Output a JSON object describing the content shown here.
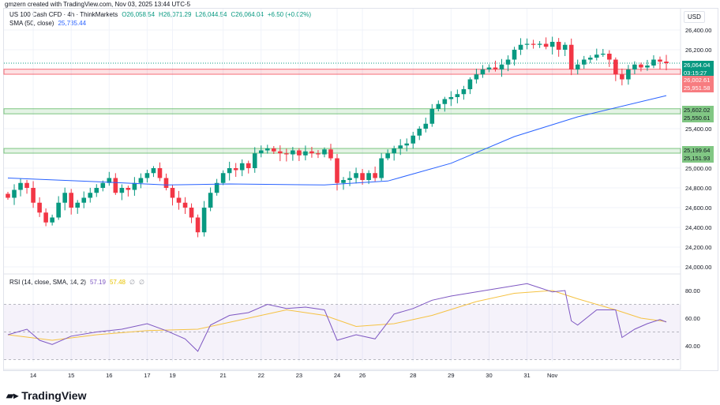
{
  "credit": "gmzern created with TradingView.com, Nov 03, 2025 13:44 UTC-5",
  "legend": {
    "symbol": "US 100 Cash CFD · 4h · ThinkMarkets",
    "open": "O26,058.54",
    "high": "H26,071.29",
    "low": "L26,044.54",
    "close": "C26,064.04",
    "change": "+6.50 (+0.02%)",
    "sma_label": "SMA (50, close)",
    "sma_value": "25,735.44"
  },
  "rsi_legend": {
    "label": "RSI (14, close, SMA, 14, 2)",
    "rsi": "57.19",
    "rsi_sma": "57.48",
    "d1": "∅",
    "d2": "∅"
  },
  "currency": "USD",
  "price_axis": [
    "26,400.00",
    "26,200.00",
    "25,400.00",
    "25,000.00",
    "24,800.00",
    "24,600.00",
    "24,400.00",
    "24,200.00",
    "24,000.00"
  ],
  "price_ticks": [
    26400,
    26200,
    25400,
    25000,
    24800,
    24600,
    24400,
    24200,
    24000
  ],
  "rsi_axis": [
    "80.00",
    "60.00",
    "40.00"
  ],
  "rsi_ticks": [
    80,
    60,
    40
  ],
  "tags": {
    "last": "26,064.04",
    "countdown": "03:15:27",
    "red_top": "26,002.61",
    "red_bottom": "25,951.58",
    "g1_top": "25,602.02",
    "g1_bottom": "25,550.61",
    "g2_top": "25,199.64",
    "g2_bottom": "25,151.93"
  },
  "colors": {
    "up": "#089981",
    "down": "#f23645",
    "sma": "#2962ff",
    "rsi": "#7e57c2",
    "rsi_sma": "#f5c242",
    "zone_red": "#f23645",
    "zone_green": "#4caf50"
  },
  "zones": [
    {
      "top": 26002.61,
      "bottom": 25951.58,
      "color": "red"
    },
    {
      "top": 25602.02,
      "bottom": 25550.61,
      "color": "green"
    },
    {
      "top": 25199.64,
      "bottom": 25151.93,
      "color": "green"
    }
  ],
  "x_axis": [
    "14",
    "15",
    "16",
    "17",
    "19",
    "21",
    "22",
    "23",
    "24",
    "26",
    "28",
    "29",
    "30",
    "31",
    "Nov"
  ],
  "x_axis_index": [
    4,
    10,
    16,
    22,
    26,
    34,
    40,
    46,
    52,
    56,
    64,
    70,
    76,
    82,
    86
  ],
  "chart_data": {
    "type": "candlestick",
    "last_price": 26064.04,
    "ylim": [
      24000,
      26450
    ],
    "closes": [
      24700,
      24780,
      24850,
      24800,
      24650,
      24550,
      24450,
      24500,
      24650,
      24750,
      24600,
      24650,
      24700,
      24750,
      24800,
      24850,
      24900,
      24750,
      24800,
      24780,
      24850,
      24900,
      24950,
      25000,
      24900,
      24800,
      24700,
      24650,
      24600,
      24500,
      24350,
      24600,
      24750,
      24850,
      24950,
      25000,
      24980,
      25050,
      25000,
      25150,
      25180,
      25200,
      25170,
      25150,
      25140,
      25180,
      25130,
      25170,
      25150,
      25140,
      25190,
      25100,
      24850,
      24880,
      24900,
      24950,
      24880,
      24950,
      24900,
      25100,
      25150,
      25200,
      25230,
      25250,
      25330,
      25400,
      25450,
      25600,
      25650,
      25700,
      25720,
      25750,
      25800,
      25900,
      25950,
      26000,
      26020,
      26000,
      26050,
      26100,
      26200,
      26250,
      26260,
      26250,
      26260,
      26230,
      26280,
      26200,
      26250,
      26000,
      26050,
      26100,
      26120,
      26150,
      26160,
      26100,
      25950,
      25900,
      26000,
      26050,
      26020,
      26040,
      26100,
      26080,
      26064
    ],
    "sma": [
      [
        0,
        24900
      ],
      [
        15,
        24860
      ],
      [
        25,
        24830
      ],
      [
        35,
        24840
      ],
      [
        50,
        24830
      ],
      [
        60,
        24870
      ],
      [
        70,
        25050
      ],
      [
        80,
        25320
      ],
      [
        90,
        25520
      ],
      [
        104,
        25735
      ]
    ],
    "rsi": [
      [
        0,
        48
      ],
      [
        3,
        52
      ],
      [
        5,
        44
      ],
      [
        7,
        41
      ],
      [
        10,
        47
      ],
      [
        14,
        50
      ],
      [
        18,
        52
      ],
      [
        22,
        56
      ],
      [
        25,
        51
      ],
      [
        28,
        45
      ],
      [
        30,
        36
      ],
      [
        32,
        55
      ],
      [
        35,
        62
      ],
      [
        38,
        64
      ],
      [
        41,
        70
      ],
      [
        44,
        67
      ],
      [
        47,
        68
      ],
      [
        50,
        66
      ],
      [
        52,
        44
      ],
      [
        55,
        48
      ],
      [
        58,
        45
      ],
      [
        61,
        63
      ],
      [
        64,
        67
      ],
      [
        67,
        73
      ],
      [
        70,
        76
      ],
      [
        74,
        79
      ],
      [
        78,
        82
      ],
      [
        82,
        85
      ],
      [
        84,
        82
      ],
      [
        86,
        79
      ],
      [
        88,
        80
      ],
      [
        89,
        58
      ],
      [
        90,
        55
      ],
      [
        93,
        66
      ],
      [
        96,
        66
      ],
      [
        97,
        46
      ],
      [
        99,
        52
      ],
      [
        101,
        56
      ],
      [
        103,
        59
      ],
      [
        104,
        57.19
      ]
    ],
    "rsi_sma": [
      [
        0,
        48
      ],
      [
        7,
        44
      ],
      [
        14,
        48
      ],
      [
        22,
        51
      ],
      [
        30,
        52
      ],
      [
        38,
        60
      ],
      [
        44,
        66
      ],
      [
        50,
        62
      ],
      [
        55,
        54
      ],
      [
        61,
        56
      ],
      [
        67,
        62
      ],
      [
        74,
        72
      ],
      [
        80,
        78
      ],
      [
        86,
        80
      ],
      [
        90,
        74
      ],
      [
        96,
        66
      ],
      [
        100,
        60
      ],
      [
        104,
        57.48
      ]
    ],
    "rsi_levels": [
      70,
      50,
      30
    ]
  }
}
